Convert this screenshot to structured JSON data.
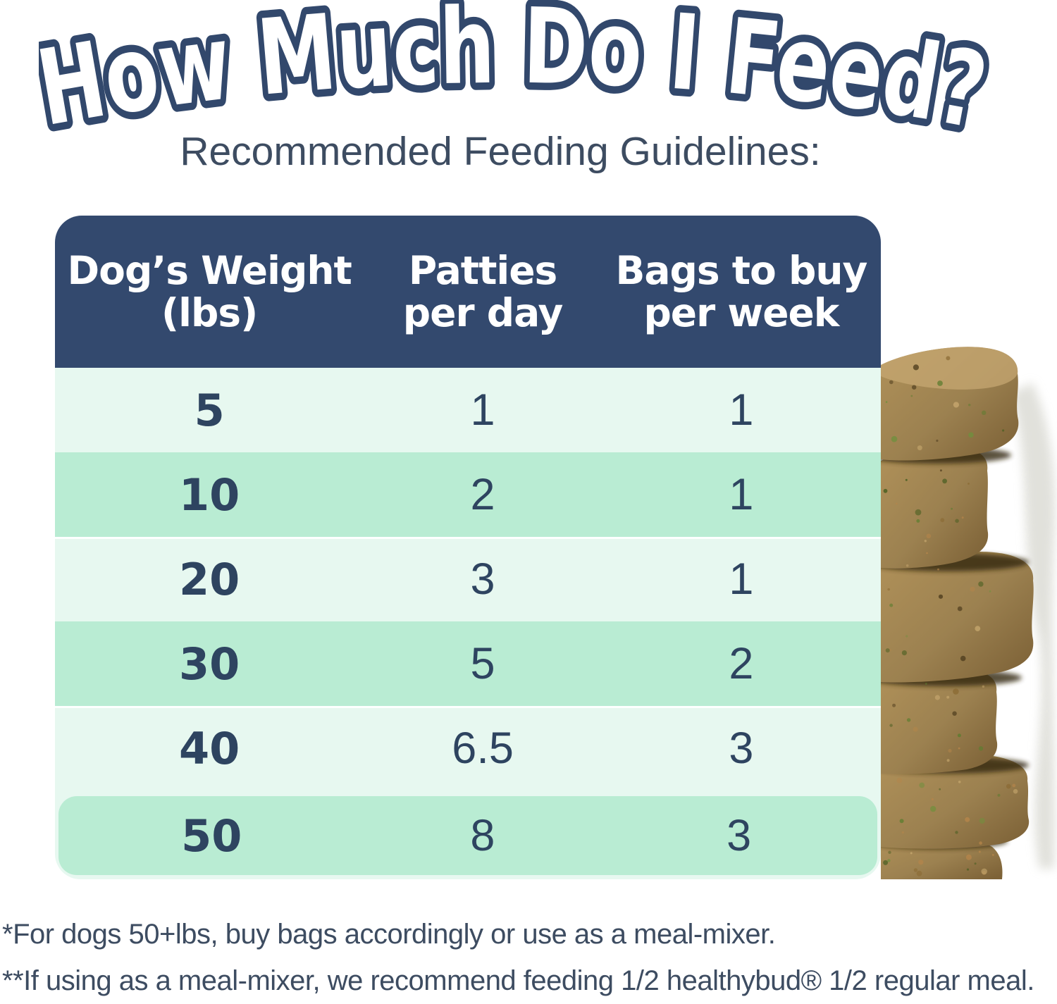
{
  "title": "How Much Do I Feed?",
  "subtitle": "Recommended Feeding Guidelines:",
  "table": {
    "header": [
      {
        "line1": "Dog’s Weight",
        "line2": "(lbs)"
      },
      {
        "line1": "Patties",
        "line2": "per day"
      },
      {
        "line1": "Bags to buy",
        "line2": "per week"
      }
    ],
    "rows": [
      {
        "weight": "5",
        "patties": "1",
        "bags": "1"
      },
      {
        "weight": "10",
        "patties": "2",
        "bags": "1"
      },
      {
        "weight": "20",
        "patties": "3",
        "bags": "1"
      },
      {
        "weight": "30",
        "patties": "5",
        "bags": "2"
      },
      {
        "weight": "40",
        "patties": "6.5",
        "bags": "3"
      },
      {
        "weight": "50",
        "patties": "8",
        "bags": "3"
      }
    ]
  },
  "footnotes": {
    "line1": "*For dogs 50+lbs, buy bags accordingly or use as a meal-mixer.",
    "line2": "**If using as a meal-mixer, we recommend feeding 1/2 healthybud® 1/2 regular meal."
  },
  "colors": {
    "navy": "#33496e",
    "mint_light": "#e7f8f0",
    "mint_dark": "#b9ecd3",
    "text_navy": "#2e4460",
    "text_slate": "#3d4c61",
    "patty_tan": "#9c8150"
  },
  "chart_data": {
    "type": "table",
    "title": "How Much Do I Feed?",
    "subtitle": "Recommended Feeding Guidelines:",
    "columns": [
      "Dog's Weight (lbs)",
      "Patties per day",
      "Bags to buy per week"
    ],
    "rows": [
      [
        5,
        1,
        1
      ],
      [
        10,
        2,
        1
      ],
      [
        20,
        3,
        1
      ],
      [
        30,
        5,
        2
      ],
      [
        40,
        6.5,
        3
      ],
      [
        50,
        8,
        3
      ]
    ],
    "footnotes": [
      "*For dogs 50+lbs, buy bags accordingly or use as a meal-mixer.",
      "**If using as a meal-mixer, we recommend feeding 1/2 healthybud® 1/2 regular meal."
    ]
  }
}
